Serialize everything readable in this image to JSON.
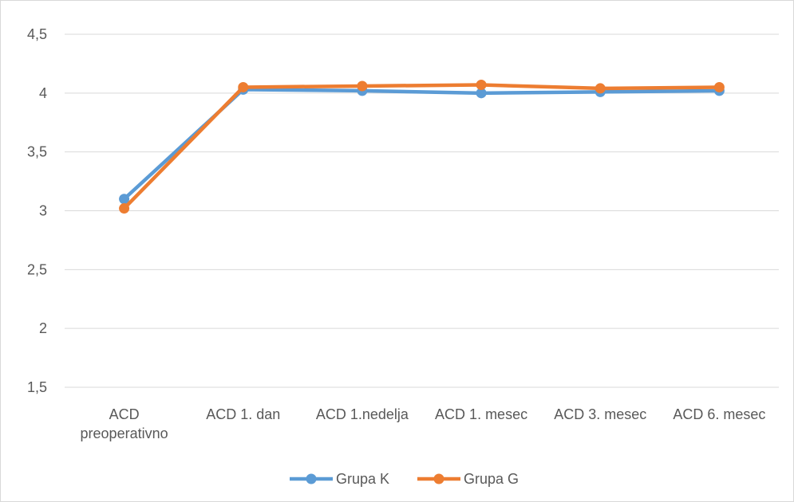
{
  "chart_data": {
    "type": "line",
    "title": "",
    "xlabel": "",
    "ylabel": "",
    "categories": [
      [
        "ACD",
        "preoperativno"
      ],
      [
        "ACD 1. dan"
      ],
      [
        "ACD 1.nedelja"
      ],
      [
        "ACD 1. mesec"
      ],
      [
        "ACD 3. mesec"
      ],
      [
        "ACD 6. mesec"
      ]
    ],
    "y_ticks": [
      "4,5",
      "4",
      "3,5",
      "3",
      "2,5",
      "2",
      "1,5"
    ],
    "ylim": [
      1.5,
      4.5
    ],
    "grid": true,
    "legend_position": "bottom",
    "series": [
      {
        "name": "Grupa K",
        "color": "#5b9bd5",
        "values": [
          3.1,
          4.03,
          4.02,
          4.0,
          4.01,
          4.02
        ]
      },
      {
        "name": "Grupa G",
        "color": "#ed7d31",
        "values": [
          3.02,
          4.05,
          4.06,
          4.07,
          4.04,
          4.05
        ]
      }
    ]
  }
}
